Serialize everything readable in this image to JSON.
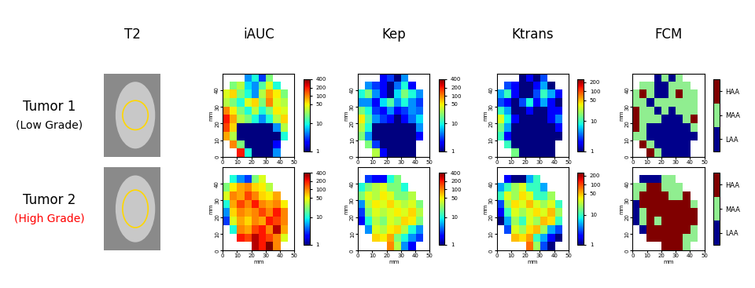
{
  "columns": [
    "T2",
    "iAUC",
    "Kep",
    "Ktrans",
    "FCM"
  ],
  "rows": [
    {
      "name": "Tumor 1",
      "subtitle": "(Low Grade)",
      "color": "#000000"
    },
    {
      "name": "Tumor 2",
      "subtitle": "(High Grade)",
      "color": "#ff0000"
    }
  ],
  "chart_data": [
    {
      "type": "heatmap",
      "xlabel": "mm",
      "ylabel": "mm",
      "xlim": [
        0,
        50
      ],
      "ylim": [
        0,
        50
      ],
      "xticks": [
        0,
        10,
        20,
        30,
        40,
        50
      ],
      "yticks": [
        0,
        10,
        20,
        30,
        40
      ],
      "colorbar": {
        "range": [
          1,
          400
        ],
        "ticks": [
          1,
          10,
          50,
          100,
          200,
          400
        ],
        "log": true
      },
      "cells": [
        [
          null,
          null,
          null,
          5,
          10,
          3,
          20,
          null,
          null,
          null
        ],
        [
          null,
          20,
          30,
          8,
          5,
          15,
          40,
          10,
          null,
          null
        ],
        [
          40,
          60,
          20,
          10,
          5,
          30,
          80,
          50,
          20,
          null
        ],
        [
          30,
          20,
          10,
          40,
          60,
          20,
          100,
          40,
          30,
          null
        ],
        [
          100,
          50,
          20,
          10,
          30,
          10,
          20,
          50,
          40,
          null
        ],
        [
          200,
          80,
          30,
          20,
          10,
          5,
          10,
          30,
          60,
          null
        ],
        [
          150,
          60,
          1,
          1,
          1,
          1,
          1,
          5,
          30,
          null
        ],
        [
          80,
          30,
          1,
          1,
          1,
          1,
          1,
          1,
          10,
          null
        ],
        [
          null,
          100,
          20,
          1,
          1,
          1,
          1,
          2,
          null,
          null
        ],
        [
          null,
          null,
          200,
          10,
          1,
          1,
          1,
          5,
          null,
          null
        ]
      ]
    },
    {
      "type": "heatmap",
      "xlabel": "mm",
      "ylabel": "mm",
      "xlim": [
        0,
        50
      ],
      "ylim": [
        0,
        50
      ],
      "xticks": [
        0,
        10,
        20,
        30,
        40,
        50
      ],
      "yticks": [
        0,
        10,
        20,
        30,
        40
      ],
      "colorbar": {
        "range": [
          1,
          400
        ],
        "ticks": [
          1,
          10,
          50,
          100,
          200,
          400
        ],
        "log": true
      },
      "cells": [
        [
          null,
          null,
          null,
          2,
          3,
          1,
          5,
          null,
          null,
          null
        ],
        [
          null,
          5,
          3,
          2,
          1,
          4,
          10,
          2,
          null,
          null
        ],
        [
          10,
          20,
          5,
          2,
          1,
          8,
          20,
          10,
          5,
          null
        ],
        [
          5,
          5,
          2,
          8,
          15,
          5,
          10,
          5,
          3,
          null
        ],
        [
          20,
          10,
          3,
          2,
          5,
          2,
          3,
          5,
          4,
          null
        ],
        [
          50,
          15,
          5,
          3,
          2,
          1,
          2,
          4,
          8,
          null
        ],
        [
          30,
          10,
          1,
          1,
          1,
          1,
          1,
          1,
          5,
          null
        ],
        [
          20,
          5,
          1,
          1,
          1,
          1,
          1,
          1,
          2,
          null
        ],
        [
          null,
          20,
          3,
          1,
          1,
          1,
          1,
          1,
          null,
          null
        ],
        [
          null,
          null,
          30,
          2,
          1,
          1,
          1,
          1,
          null,
          null
        ]
      ]
    },
    {
      "type": "heatmap",
      "xlabel": "mm",
      "ylabel": "mm",
      "xlim": [
        0,
        50
      ],
      "ylim": [
        0,
        50
      ],
      "xticks": [
        0,
        10,
        20,
        30,
        40,
        50
      ],
      "yticks": [
        0,
        10,
        20,
        30,
        40
      ],
      "colorbar": {
        "range": [
          1,
          250
        ],
        "ticks": [
          1,
          10,
          50,
          100,
          200
        ],
        "log": true
      },
      "cells": [
        [
          null,
          null,
          null,
          1,
          2,
          1,
          3,
          null,
          null,
          null
        ],
        [
          null,
          3,
          2,
          1,
          1,
          2,
          5,
          1,
          null,
          null
        ],
        [
          5,
          10,
          2,
          1,
          1,
          3,
          10,
          5,
          2,
          null
        ],
        [
          3,
          2,
          1,
          3,
          8,
          2,
          5,
          2,
          1,
          null
        ],
        [
          10,
          5,
          1,
          1,
          2,
          1,
          1,
          2,
          2,
          null
        ],
        [
          30,
          8,
          2,
          1,
          1,
          1,
          1,
          2,
          4,
          null
        ],
        [
          15,
          5,
          1,
          1,
          1,
          1,
          1,
          1,
          2,
          null
        ],
        [
          10,
          2,
          1,
          1,
          1,
          1,
          1,
          1,
          1,
          null
        ],
        [
          null,
          10,
          1,
          1,
          1,
          1,
          1,
          1,
          null,
          null
        ],
        [
          null,
          null,
          15,
          1,
          1,
          1,
          1,
          1,
          null,
          null
        ]
      ]
    },
    {
      "type": "categorical_map",
      "xlabel": "mm",
      "ylabel": "mm",
      "xlim": [
        0,
        50
      ],
      "ylim": [
        0,
        50
      ],
      "xticks": [
        0,
        10,
        20,
        30,
        40,
        50
      ],
      "yticks": [
        0,
        10,
        20,
        30,
        40
      ],
      "levels": [
        "LAA",
        "MAA",
        "HAA"
      ],
      "colors": [
        "#00008b",
        "#90ee90",
        "#800000"
      ],
      "cells": [
        [
          null,
          null,
          null,
          "LAA",
          "MAA",
          "LAA",
          "MAA",
          null,
          null,
          null
        ],
        [
          null,
          "MAA",
          "MAA",
          "LAA",
          "LAA",
          "MAA",
          "MAA",
          "MAA",
          null,
          null
        ],
        [
          "MAA",
          "HAA",
          "MAA",
          "LAA",
          "LAA",
          "MAA",
          "HAA",
          "MAA",
          "MAA",
          null
        ],
        [
          "MAA",
          "MAA",
          "LAA",
          "MAA",
          "MAA",
          "MAA",
          "MAA",
          "MAA",
          "MAA",
          null
        ],
        [
          "HAA",
          "MAA",
          "MAA",
          "LAA",
          "MAA",
          "LAA",
          "MAA",
          "MAA",
          "MAA",
          null
        ],
        [
          "HAA",
          "MAA",
          "MAA",
          "MAA",
          "LAA",
          "LAA",
          "LAA",
          "MAA",
          "HAA",
          null
        ],
        [
          "HAA",
          "MAA",
          "LAA",
          "LAA",
          "LAA",
          "LAA",
          "LAA",
          "LAA",
          "MAA",
          null
        ],
        [
          "MAA",
          "MAA",
          "LAA",
          "LAA",
          "LAA",
          "LAA",
          "LAA",
          "LAA",
          "LAA",
          null
        ],
        [
          null,
          "HAA",
          "MAA",
          "LAA",
          "LAA",
          "LAA",
          "LAA",
          "LAA",
          null,
          null
        ],
        [
          null,
          null,
          "HAA",
          "MAA",
          "LAA",
          "LAA",
          "LAA",
          "LAA",
          null,
          null
        ]
      ]
    },
    {
      "type": "heatmap",
      "xlabel": "mm",
      "ylabel": "mm",
      "xlim": [
        0,
        50
      ],
      "ylim": [
        0,
        50
      ],
      "xticks": [
        0,
        10,
        20,
        30,
        40,
        50
      ],
      "yticks": [
        0,
        10,
        20,
        30,
        40
      ],
      "colorbar": {
        "range": [
          1,
          400
        ],
        "ticks": [
          1,
          10,
          50,
          100,
          200,
          400
        ],
        "log": true
      },
      "cells": [
        [
          null,
          null,
          null,
          null,
          null,
          null,
          null,
          null,
          null,
          null
        ],
        [
          null,
          10,
          5,
          3,
          20,
          40,
          null,
          null,
          null,
          null
        ],
        [
          20,
          50,
          80,
          100,
          60,
          50,
          30,
          null,
          null,
          null
        ],
        [
          40,
          100,
          80,
          150,
          100,
          60,
          50,
          80,
          null,
          null
        ],
        [
          10,
          80,
          150,
          100,
          200,
          100,
          80,
          100,
          50,
          null
        ],
        [
          5,
          60,
          100,
          80,
          100,
          150,
          100,
          200,
          100,
          null
        ],
        [
          3,
          40,
          80,
          60,
          100,
          80,
          200,
          150,
          100,
          null
        ],
        [
          null,
          10,
          100,
          80,
          150,
          200,
          100,
          300,
          80,
          null
        ],
        [
          null,
          null,
          200,
          150,
          300,
          200,
          150,
          100,
          40,
          null
        ],
        [
          null,
          null,
          null,
          null,
          300,
          200,
          400,
          100,
          null,
          null
        ]
      ]
    },
    {
      "type": "heatmap",
      "xlabel": "mm",
      "ylabel": "mm",
      "xlim": [
        0,
        50
      ],
      "ylim": [
        0,
        50
      ],
      "xticks": [
        0,
        10,
        20,
        30,
        40,
        50
      ],
      "yticks": [
        0,
        10,
        20,
        30,
        40
      ],
      "colorbar": {
        "range": [
          1,
          400
        ],
        "ticks": [
          1,
          10,
          50,
          100,
          200,
          400
        ],
        "log": true
      },
      "cells": [
        [
          null,
          null,
          null,
          null,
          null,
          null,
          null,
          null,
          null,
          null
        ],
        [
          null,
          3,
          2,
          2,
          10,
          20,
          null,
          null,
          null,
          null
        ],
        [
          10,
          20,
          30,
          40,
          20,
          20,
          10,
          null,
          null,
          null
        ],
        [
          20,
          40,
          30,
          50,
          40,
          20,
          20,
          30,
          null,
          null
        ],
        [
          5,
          30,
          50,
          40,
          60,
          40,
          30,
          40,
          20,
          null
        ],
        [
          3,
          20,
          40,
          30,
          40,
          50,
          40,
          60,
          30,
          null
        ],
        [
          2,
          10,
          30,
          20,
          40,
          30,
          60,
          50,
          20,
          null
        ],
        [
          null,
          5,
          40,
          30,
          50,
          60,
          30,
          10,
          5,
          null
        ],
        [
          null,
          null,
          60,
          50,
          80,
          20,
          10,
          5,
          3,
          null
        ],
        [
          null,
          null,
          null,
          null,
          100,
          30,
          5,
          2,
          null,
          null
        ]
      ]
    },
    {
      "type": "heatmap",
      "xlabel": "mm",
      "ylabel": "mm",
      "xlim": [
        0,
        50
      ],
      "ylim": [
        0,
        50
      ],
      "xticks": [
        0,
        10,
        20,
        30,
        40,
        50
      ],
      "yticks": [
        0,
        10,
        20,
        30,
        40
      ],
      "colorbar": {
        "range": [
          1,
          250
        ],
        "ticks": [
          1,
          10,
          50,
          100,
          200
        ],
        "log": true
      },
      "cells": [
        [
          null,
          null,
          null,
          null,
          null,
          null,
          null,
          null,
          null,
          null
        ],
        [
          null,
          2,
          1,
          1,
          5,
          10,
          null,
          null,
          null,
          null
        ],
        [
          5,
          10,
          20,
          30,
          10,
          10,
          5,
          null,
          null,
          null
        ],
        [
          10,
          30,
          20,
          40,
          30,
          10,
          10,
          20,
          null,
          null
        ],
        [
          3,
          20,
          40,
          30,
          50,
          30,
          20,
          30,
          10,
          null
        ],
        [
          2,
          10,
          30,
          20,
          30,
          40,
          30,
          50,
          20,
          null
        ],
        [
          1,
          5,
          20,
          10,
          30,
          20,
          50,
          40,
          10,
          null
        ],
        [
          null,
          3,
          30,
          20,
          40,
          50,
          20,
          5,
          3,
          null
        ],
        [
          null,
          null,
          50,
          40,
          60,
          10,
          5,
          2,
          1,
          null
        ],
        [
          null,
          null,
          null,
          null,
          80,
          20,
          3,
          1,
          null,
          null
        ]
      ]
    },
    {
      "type": "categorical_map",
      "xlabel": "mm",
      "ylabel": "mm",
      "xlim": [
        0,
        50
      ],
      "ylim": [
        0,
        50
      ],
      "xticks": [
        0,
        10,
        20,
        30,
        40,
        50
      ],
      "yticks": [
        0,
        10,
        20,
        30,
        40
      ],
      "levels": [
        "LAA",
        "MAA",
        "HAA"
      ],
      "colors": [
        "#00008b",
        "#90ee90",
        "#800000"
      ],
      "cells": [
        [
          null,
          null,
          null,
          null,
          null,
          null,
          null,
          null,
          null,
          null
        ],
        [
          null,
          "LAA",
          "LAA",
          "LAA",
          "MAA",
          "MAA",
          null,
          null,
          null,
          null
        ],
        [
          "MAA",
          "MAA",
          "HAA",
          "HAA",
          "MAA",
          "MAA",
          "MAA",
          null,
          null,
          null
        ],
        [
          "MAA",
          "HAA",
          "HAA",
          "HAA",
          "HAA",
          "MAA",
          "MAA",
          "HAA",
          null,
          null
        ],
        [
          "LAA",
          "HAA",
          "HAA",
          "HAA",
          "HAA",
          "HAA",
          "HAA",
          "HAA",
          "MAA",
          null
        ],
        [
          "LAA",
          "MAA",
          "HAA",
          "HAA",
          "HAA",
          "HAA",
          "HAA",
          "HAA",
          "HAA",
          null
        ],
        [
          "LAA",
          "MAA",
          "HAA",
          "MAA",
          "HAA",
          "HAA",
          "HAA",
          "HAA",
          "HAA",
          null
        ],
        [
          null,
          "LAA",
          "HAA",
          "HAA",
          "HAA",
          "HAA",
          "HAA",
          "HAA",
          "MAA",
          null
        ],
        [
          null,
          null,
          "HAA",
          "HAA",
          "HAA",
          "HAA",
          "HAA",
          "MAA",
          "MAA",
          null
        ],
        [
          null,
          null,
          null,
          null,
          "HAA",
          "HAA",
          "HAA",
          "MAA",
          null,
          null
        ]
      ]
    }
  ]
}
